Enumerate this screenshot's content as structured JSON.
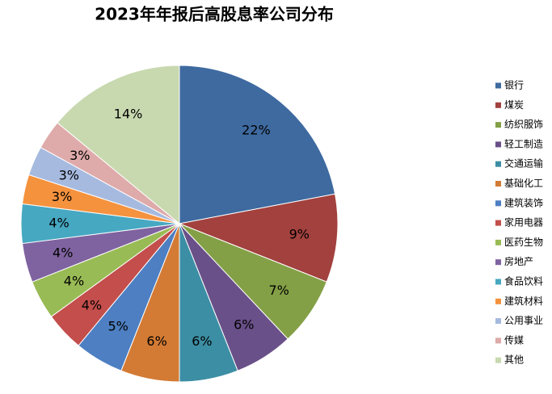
{
  "chart_data": {
    "type": "pie",
    "title": "2023年年报后高股息率公司分布",
    "categories": [
      "银行",
      "煤炭",
      "纺织服饰",
      "轻工制造",
      "交通运输",
      "基础化工",
      "建筑装饰",
      "家用电器",
      "医药生物",
      "房地产",
      "食品饮料",
      "建筑材料",
      "公用事业",
      "传媒",
      "其他"
    ],
    "values": [
      22,
      9,
      7,
      6,
      6,
      6,
      5,
      4,
      4,
      4,
      4,
      3,
      3,
      3,
      14
    ],
    "value_labels": [
      "22%",
      "9%",
      "7%",
      "6%",
      "6%",
      "6%",
      "5%",
      "4%",
      "4%",
      "4%",
      "4%",
      "3%",
      "3%",
      "3%",
      "14%"
    ],
    "colors": [
      "#3e6aa0",
      "#a2413e",
      "#84a046",
      "#6a5089",
      "#3c8ea4",
      "#d37b34",
      "#4d7fc2",
      "#c34e4b",
      "#99bb55",
      "#7f63a0",
      "#47a8c2",
      "#f5923e",
      "#a6badf",
      "#deaaaa",
      "#c8d9b0"
    ],
    "legend": "right"
  }
}
